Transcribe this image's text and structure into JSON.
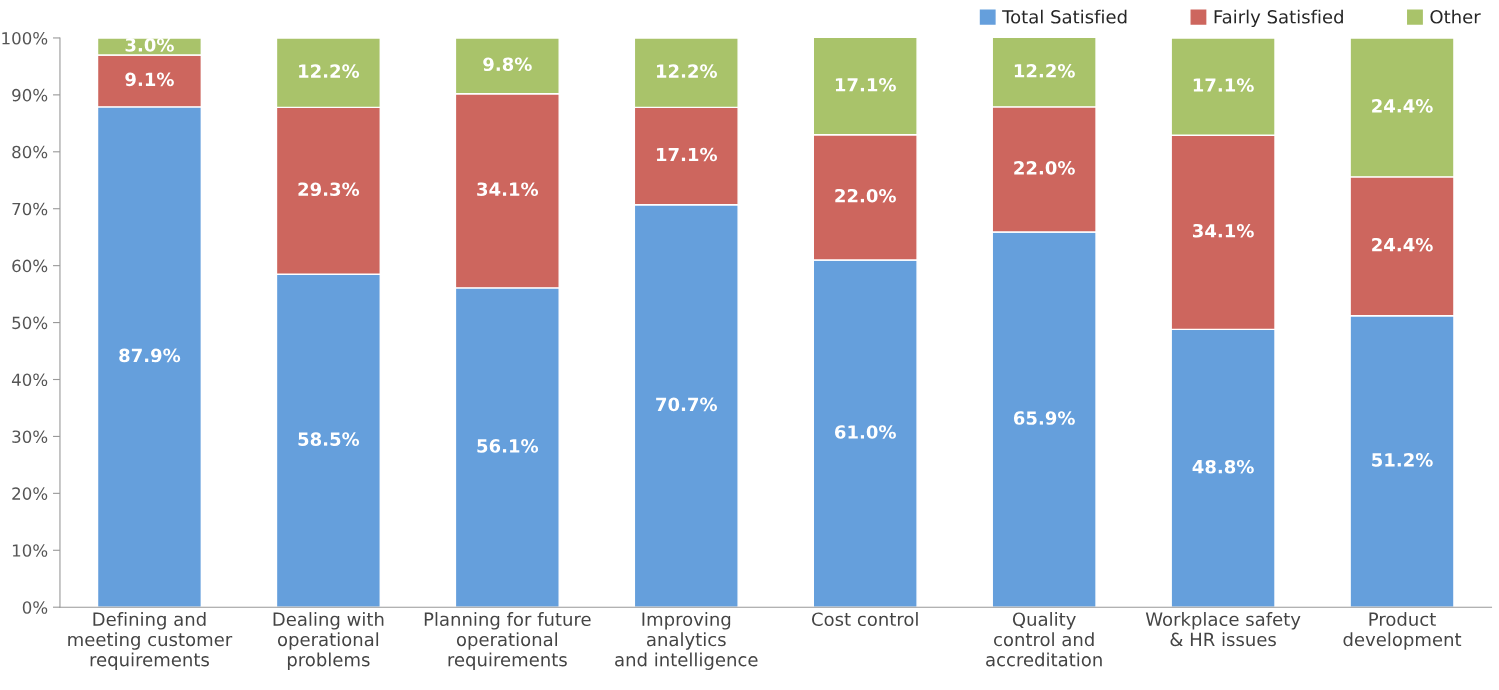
{
  "chart_data": {
    "type": "bar",
    "stacked": true,
    "categories": [
      "Defining and\nmeeting customer\nrequirements",
      "Dealing with\noperational\nproblems",
      "Planning for future\noperational\nrequirements",
      "Improving\nanalytics\nand intelligence",
      "Cost control",
      "Quality\ncontrol and\naccreditation",
      "Workplace safety\n& HR issues",
      "Product\ndevelopment"
    ],
    "series": [
      {
        "name": "Total Satisfied",
        "color": "#659fdc",
        "values": [
          87.9,
          58.5,
          56.1,
          70.7,
          61.0,
          65.9,
          48.8,
          51.2
        ],
        "value_labels": [
          "87.9%",
          "58.5%",
          "56.1%",
          "70.7%",
          "61.0%",
          "65.9%",
          "48.8%",
          "51.2%"
        ]
      },
      {
        "name": "Fairly Satisfied",
        "color": "#cd665e",
        "values": [
          9.1,
          29.3,
          34.1,
          17.1,
          22.0,
          22.0,
          34.1,
          24.4
        ],
        "value_labels": [
          "9.1%",
          "29.3%",
          "34.1%",
          "17.1%",
          "22.0%",
          "22.0%",
          "34.1%",
          "24.4%"
        ]
      },
      {
        "name": "Other",
        "color": "#a9c36a",
        "values": [
          3.0,
          12.2,
          9.8,
          12.2,
          17.1,
          12.2,
          17.1,
          24.4
        ],
        "value_labels": [
          "3.0%",
          "12.2%",
          "9.8%",
          "12.2%",
          "17.1%",
          "12.2%",
          "17.1%",
          "24.4%"
        ]
      }
    ],
    "ylim": [
      0,
      100
    ],
    "yticks": [
      {
        "value": 0,
        "label": "0%"
      },
      {
        "value": 10,
        "label": "10%"
      },
      {
        "value": 20,
        "label": "20%"
      },
      {
        "value": 30,
        "label": "30%"
      },
      {
        "value": 40,
        "label": "40%"
      },
      {
        "value": 50,
        "label": "50%"
      },
      {
        "value": 60,
        "label": "60%"
      },
      {
        "value": 70,
        "label": "70%"
      },
      {
        "value": 80,
        "label": "80%"
      },
      {
        "value": 90,
        "label": "90%"
      },
      {
        "value": 100,
        "label": "100%"
      }
    ],
    "legend": "top right",
    "grid": false
  }
}
